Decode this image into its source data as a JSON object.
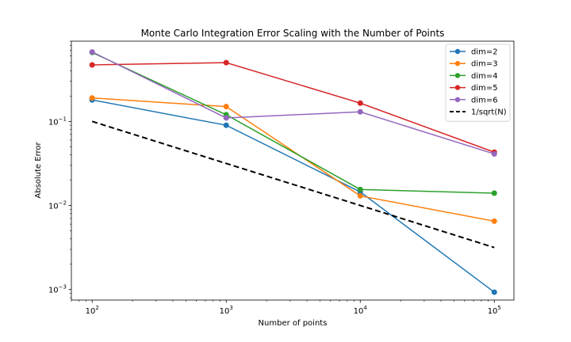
{
  "chart_data": {
    "type": "line",
    "title": "Monte Carlo Integration Error Scaling with the Number of Points",
    "xlabel": "Number of points",
    "ylabel": "Absolute Error",
    "xscale": "log",
    "yscale": "log",
    "xlim": [
      70,
      140000
    ],
    "ylim": [
      0.00075,
      0.9
    ],
    "x": [
      100,
      1000,
      10000,
      100000
    ],
    "x_ticks": [
      {
        "value": 100,
        "base": "10",
        "exp": "2"
      },
      {
        "value": 1000,
        "base": "10",
        "exp": "3"
      },
      {
        "value": 10000,
        "base": "10",
        "exp": "4"
      },
      {
        "value": 100000,
        "base": "10",
        "exp": "5"
      }
    ],
    "y_ticks": [
      {
        "value": 0.001,
        "base": "10",
        "exp": "−3"
      },
      {
        "value": 0.01,
        "base": "10",
        "exp": "−2"
      },
      {
        "value": 0.1,
        "base": "10",
        "exp": "−1"
      }
    ],
    "grid": false,
    "legend_position": "top-right",
    "series": [
      {
        "name": "dim=2",
        "color": "#1f77b4",
        "style": "solid",
        "marker": true,
        "values": [
          0.18,
          0.09,
          0.0145,
          0.00093
        ]
      },
      {
        "name": "dim=3",
        "color": "#ff7f0e",
        "style": "solid",
        "marker": true,
        "values": [
          0.19,
          0.15,
          0.013,
          0.0065
        ]
      },
      {
        "name": "dim=4",
        "color": "#2ca02c",
        "style": "solid",
        "marker": true,
        "values": [
          0.66,
          0.12,
          0.0155,
          0.014
        ]
      },
      {
        "name": "dim=5",
        "color": "#d62728",
        "style": "solid",
        "marker": true,
        "values": [
          0.47,
          0.5,
          0.165,
          0.043
        ]
      },
      {
        "name": "dim=6",
        "color": "#9467bd",
        "style": "solid",
        "marker": true,
        "values": [
          0.67,
          0.11,
          0.13,
          0.041
        ]
      },
      {
        "name": "1/sqrt(N)",
        "color": "#000000",
        "style": "dashed",
        "marker": false,
        "values": [
          0.1,
          0.0316,
          0.01,
          0.00316
        ]
      }
    ]
  }
}
